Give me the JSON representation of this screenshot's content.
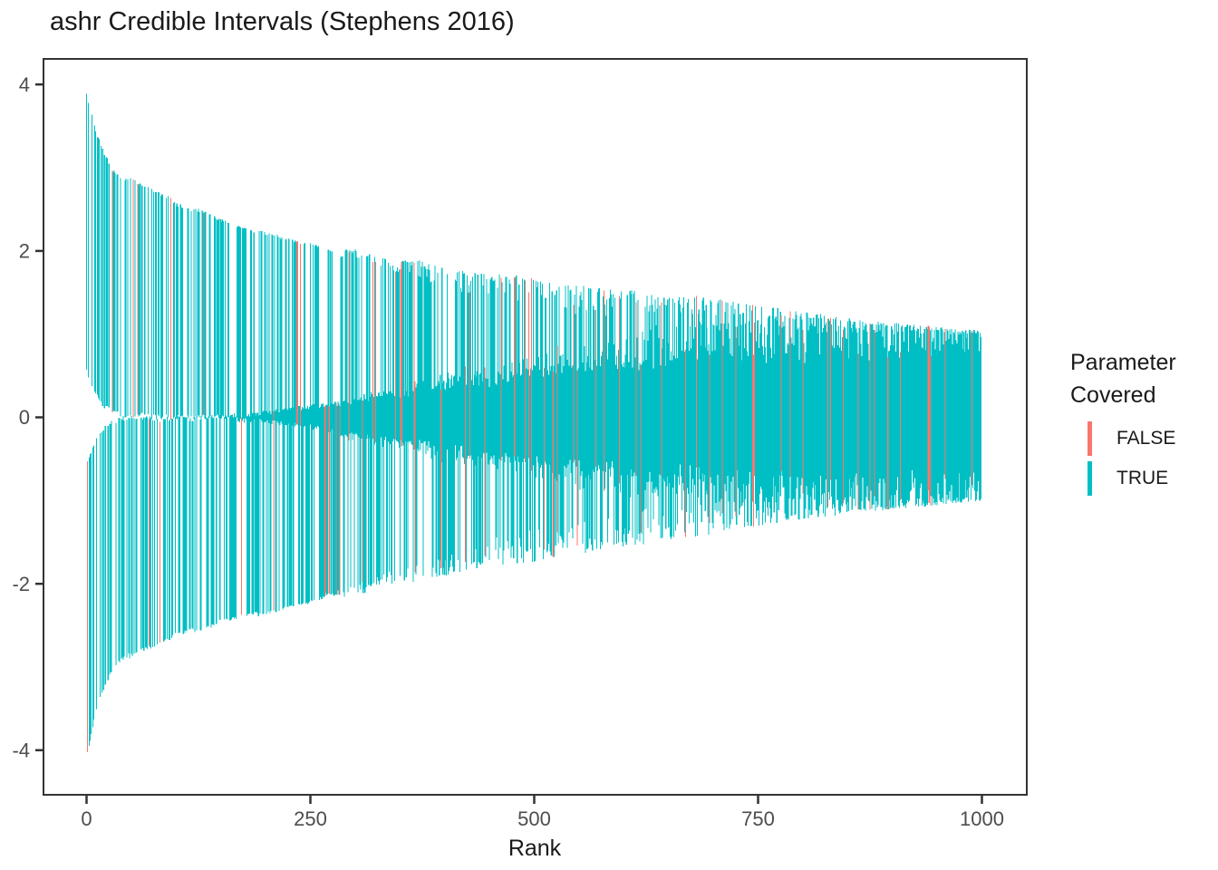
{
  "title": "ashr Credible Intervals (Stephens 2016)",
  "chart_data": {
    "type": "interval-segments",
    "title": "ashr Credible Intervals (Stephens 2016)",
    "xlabel": "Rank",
    "ylabel": "",
    "x_ticks": [
      0,
      250,
      500,
      750,
      1000
    ],
    "y_ticks": [
      4,
      2,
      0,
      -2,
      -4
    ],
    "xlim": [
      -48,
      1050
    ],
    "ylim": [
      -4.53,
      4.3
    ],
    "grid": "off",
    "panel_border": true,
    "n_intervals": 1000,
    "description": "1000 vertical 95% credible intervals sorted by rank; interval width shrinks with rank; colored by whether the true parameter is covered",
    "envelope": {
      "ranks": [
        0,
        5,
        10,
        20,
        30,
        40,
        60,
        80,
        100,
        150,
        200,
        250,
        300,
        350,
        400,
        450,
        500,
        550,
        600,
        650,
        700,
        750,
        800,
        850,
        900,
        950,
        1000
      ],
      "upper": [
        3.9,
        3.7,
        3.45,
        3.18,
        2.98,
        2.9,
        2.79,
        2.68,
        2.57,
        2.38,
        2.2,
        2.08,
        1.99,
        1.9,
        1.81,
        1.73,
        1.66,
        1.58,
        1.52,
        1.47,
        1.42,
        1.35,
        1.26,
        1.19,
        1.13,
        1.08,
        1.04
      ],
      "lower": [
        -4.12,
        -3.85,
        -3.55,
        -3.25,
        -3.02,
        -2.92,
        -2.8,
        -2.7,
        -2.62,
        -2.46,
        -2.35,
        -2.22,
        -2.1,
        -2.0,
        -1.9,
        -1.81,
        -1.72,
        -1.63,
        -1.55,
        -1.46,
        -1.38,
        -1.3,
        -1.22,
        -1.15,
        -1.1,
        -1.05,
        -1.01
      ],
      "inner": [
        -0.55,
        -0.4,
        -0.28,
        -0.13,
        -0.06,
        -0.02,
        -0.015,
        -0.015,
        -0.01,
        0.0,
        0.05,
        0.12,
        0.2,
        0.27,
        0.36,
        0.43,
        0.5,
        0.56,
        0.62,
        0.67,
        0.7,
        0.73,
        0.74,
        0.75,
        0.76,
        0.77,
        0.78
      ]
    },
    "false_ranks": [
      1,
      29,
      52,
      57,
      70,
      82,
      94,
      131,
      173,
      209,
      235,
      236,
      239,
      266,
      267,
      271,
      279,
      283,
      293,
      308,
      320,
      323,
      345,
      351,
      352,
      366,
      367,
      396,
      423,
      428,
      445,
      463,
      478,
      490,
      494,
      497,
      511,
      521,
      526,
      544,
      548,
      569,
      578,
      595,
      614,
      619,
      642,
      669,
      681,
      696,
      710,
      725,
      744,
      745,
      746,
      776,
      786,
      800,
      828,
      831,
      845,
      862,
      875,
      880,
      895,
      909,
      940,
      941,
      943,
      959,
      989
    ],
    "forced_signs": {
      "0": 1,
      "1": -1,
      "2": 1,
      "3": -1,
      "29": 1,
      "52": 1,
      "57": 1,
      "70": -1,
      "82": -1,
      "94": 1,
      "173": -1,
      "209": -1,
      "235": 1,
      "236": 1,
      "239": 1,
      "266": -1,
      "279": -1,
      "283": -1,
      "744": 1,
      "745": -1,
      "746": 1
    },
    "jitter": {
      "seed": 20160521,
      "block_size": 24,
      "outer_wobble": 0.02,
      "outer_noise": 0.015,
      "inner_noise": 0.06,
      "top_scatter": 1.0,
      "inner_scatter": 0.55,
      "ramp_start": 250,
      "ramp_span": 500
    },
    "colors": {
      "covered_true": "#00BFC4",
      "covered_false": "#F8766D",
      "axis_text": "#4d4d4d",
      "panel_border": "#333333",
      "title_text": "#1a1a1a"
    },
    "legend": {
      "title_line1": "Parameter",
      "title_line2": "Covered",
      "items": [
        {
          "label": "FALSE",
          "color": "#F8766D"
        },
        {
          "label": "TRUE",
          "color": "#00BFC4"
        }
      ],
      "position": "right"
    }
  }
}
